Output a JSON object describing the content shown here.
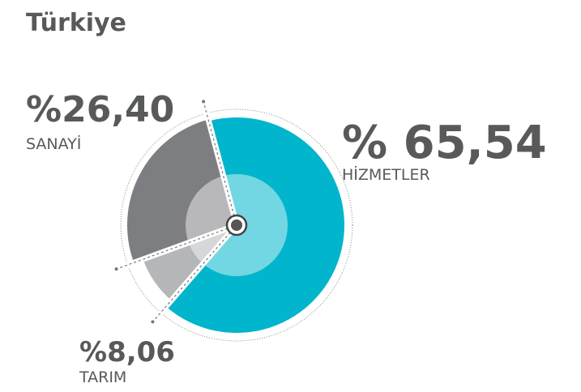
{
  "chart_data": {
    "type": "pie",
    "title": "Türkiye",
    "categories": [
      "HİZMETLER",
      "TARIM",
      "SANAYİ"
    ],
    "values": [
      65.54,
      8.06,
      26.4
    ],
    "value_labels": [
      "% 65,54",
      "%8,06",
      "%26,40"
    ],
    "colors": [
      "#00b5cc",
      "#b5b6b8",
      "#7d7e81"
    ]
  }
}
